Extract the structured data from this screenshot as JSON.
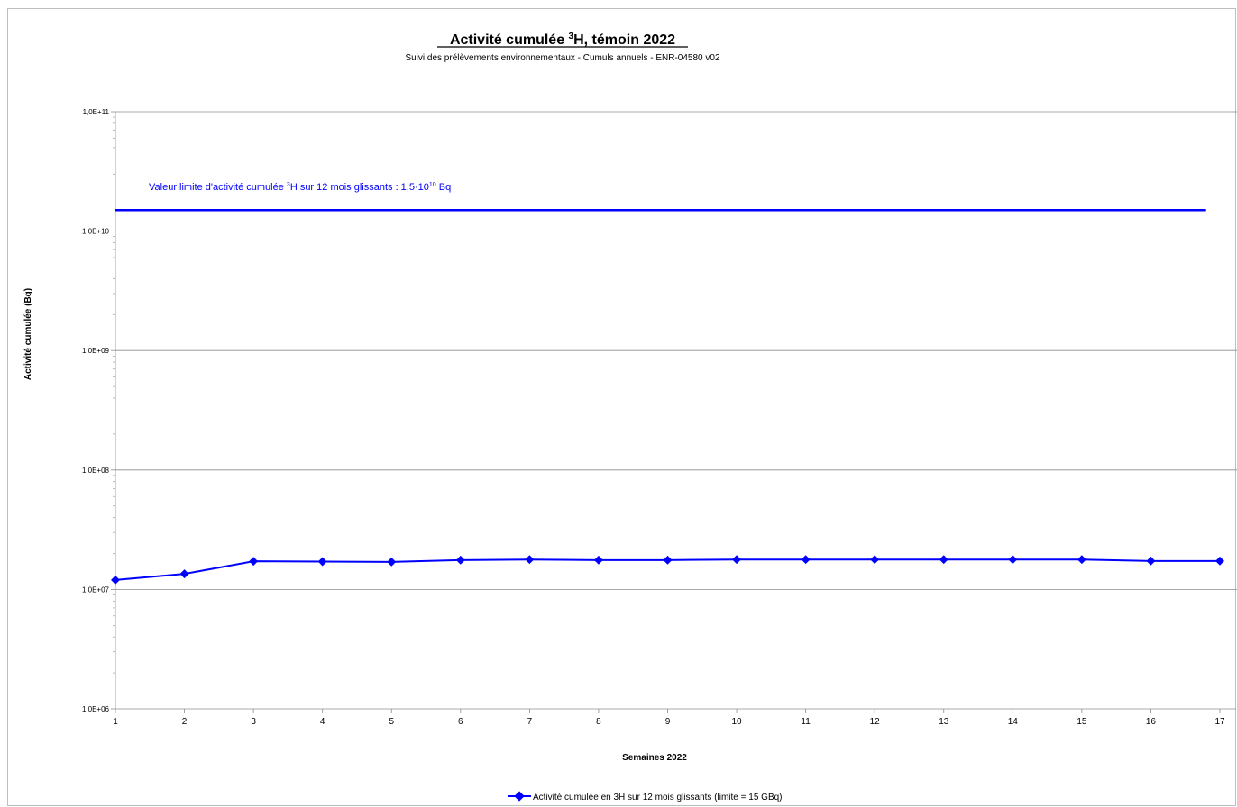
{
  "chart_data": {
    "type": "line",
    "title_main": "Activité cumulée ",
    "title_sup": "3",
    "title_rest": "H, témoin 2022",
    "subtitle": "Suivi des prélèvements environnementaux - Cumuls annuels - ENR-04580 v02",
    "xlabel": "Semaines 2022",
    "ylabel": "Activité cumulée (Bq)",
    "yscale": "log",
    "ylim": [
      1000000,
      100000000000
    ],
    "xlim": [
      1,
      17
    ],
    "y_ticks": [
      "1,0E+06",
      "1,0E+07",
      "1,0E+08",
      "1,0E+09",
      "1,0E+10",
      "1,0E+11"
    ],
    "x": [
      1,
      2,
      3,
      4,
      5,
      6,
      7,
      8,
      9,
      10,
      11,
      12,
      13,
      14,
      15,
      16,
      17
    ],
    "series": [
      {
        "name": "Activité cumulée en 3H sur 12 mois glissants (limite = 15 GBq)",
        "color": "#0000ff",
        "values": [
          12000000,
          13500000,
          17200000,
          17100000,
          17000000,
          17600000,
          17800000,
          17600000,
          17600000,
          17800000,
          17800000,
          17800000,
          17800000,
          17800000,
          17800000,
          17300000,
          17300000
        ]
      }
    ],
    "limit_line": {
      "value": 15000000000,
      "x_end": 16.8,
      "color": "#0000ff"
    },
    "annotation": {
      "text_before": "Valeur limite d'activité cumulée ",
      "sup1": "3",
      "text_mid": "H sur 12 mois glissants : 1,5·10",
      "sup2": "10",
      "text_after": " Bq"
    },
    "legend_position": "bottom",
    "grid": true
  }
}
